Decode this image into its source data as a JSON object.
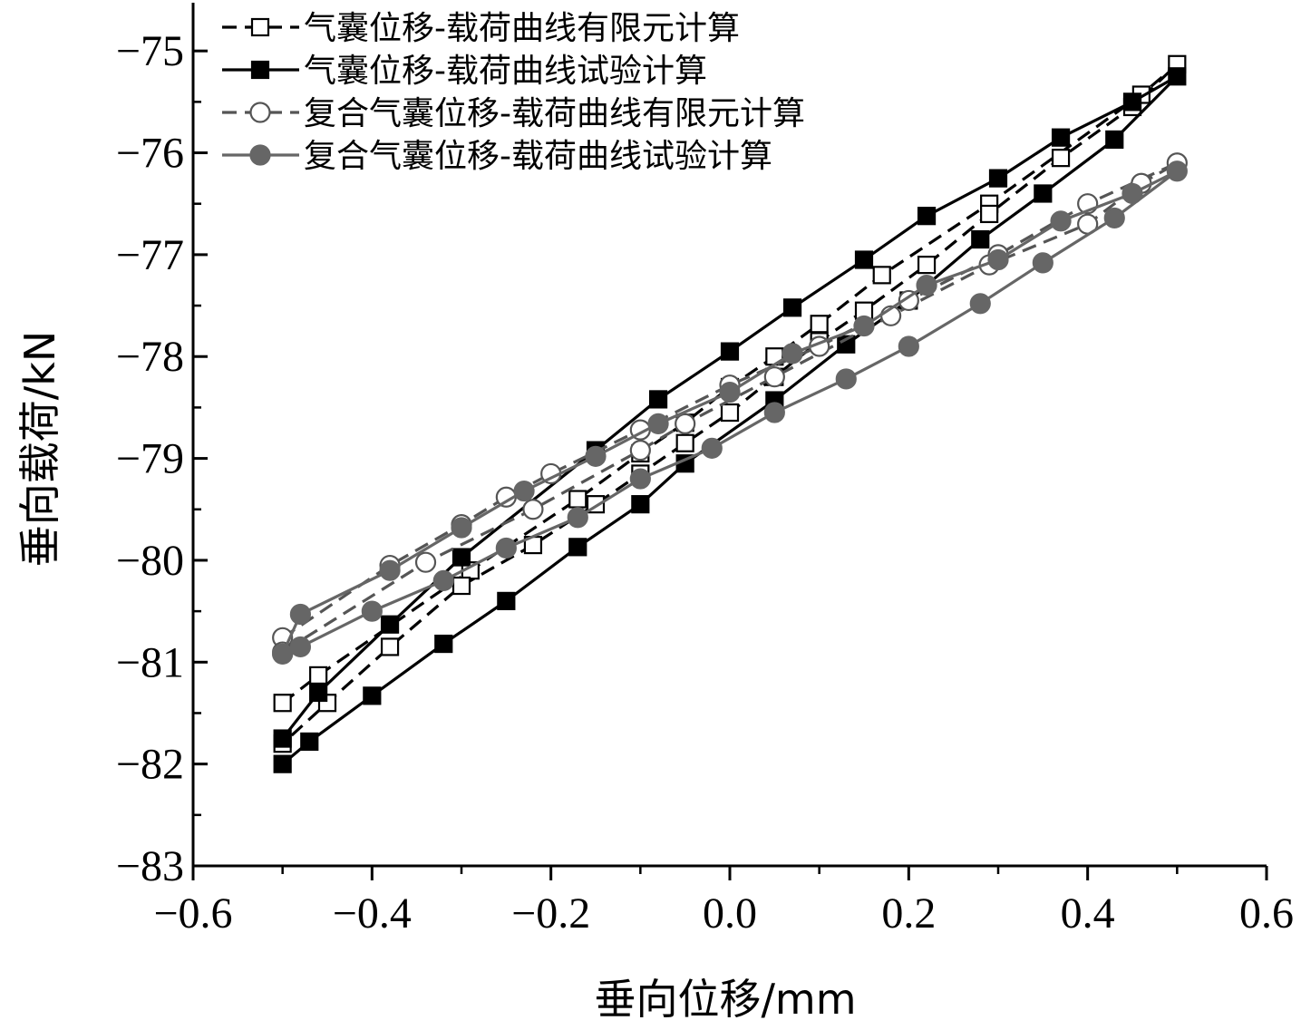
{
  "chart_data": {
    "type": "line",
    "title": "",
    "xlabel": "垂向位移/mm",
    "ylabel": "垂向载荷/kN",
    "xlim": [
      -0.6,
      0.6
    ],
    "ylim": [
      -83,
      -74.5
    ],
    "xticks": [
      -0.6,
      -0.4,
      -0.2,
      0.0,
      0.2,
      0.4,
      0.6
    ],
    "xtick_labels": [
      "−0.6",
      "−0.4",
      "−0.2",
      "0.0",
      "0.2",
      "0.4",
      "0.6"
    ],
    "yticks": [
      -83,
      -82,
      -81,
      -80,
      -79,
      -78,
      -77,
      -76,
      -75
    ],
    "ytick_labels": [
      "−83",
      "−82",
      "−81",
      "−80",
      "−79",
      "−78",
      "−77",
      "−76",
      "−75"
    ],
    "grid": false,
    "legend_position": "top-left",
    "series": [
      {
        "name": "气囊位移-载荷曲线有限元计算",
        "style": "dashed",
        "marker": "square-open",
        "color": "#000000",
        "x": [
          -0.5,
          -0.46,
          -0.29,
          -0.17,
          -0.1,
          -0.05,
          0.0,
          0.05,
          0.1,
          0.17,
          0.29,
          0.46,
          0.5,
          0.45,
          0.37,
          0.29,
          0.22,
          0.15,
          0.1,
          0.05,
          0.0,
          -0.05,
          -0.1,
          -0.15,
          -0.22,
          -0.3,
          -0.38,
          -0.45,
          -0.5
        ],
        "y": [
          -81.4,
          -81.13,
          -80.1,
          -79.4,
          -78.95,
          -78.65,
          -78.3,
          -78.0,
          -77.68,
          -77.2,
          -76.5,
          -75.43,
          -75.13,
          -75.55,
          -76.05,
          -76.6,
          -77.1,
          -77.55,
          -77.85,
          -78.2,
          -78.55,
          -78.85,
          -79.15,
          -79.45,
          -79.85,
          -80.25,
          -80.85,
          -81.4,
          -81.8
        ]
      },
      {
        "name": "气囊位移-载荷曲线试验计算",
        "style": "solid",
        "marker": "square-filled",
        "color": "#000000",
        "x": [
          -0.5,
          -0.47,
          -0.4,
          -0.32,
          -0.25,
          -0.17,
          -0.1,
          -0.05,
          0.05,
          0.13,
          0.2,
          0.28,
          0.35,
          0.43,
          0.5,
          0.45,
          0.37,
          0.3,
          0.22,
          0.15,
          0.07,
          0.0,
          -0.08,
          -0.15,
          -0.3,
          -0.38,
          -0.46,
          -0.5
        ],
        "y": [
          -82.0,
          -81.78,
          -81.33,
          -80.82,
          -80.4,
          -79.87,
          -79.45,
          -79.05,
          -78.43,
          -77.88,
          -77.45,
          -76.85,
          -76.4,
          -75.87,
          -75.25,
          -75.5,
          -75.85,
          -76.25,
          -76.62,
          -77.05,
          -77.52,
          -77.95,
          -78.42,
          -78.92,
          -79.97,
          -80.63,
          -81.3,
          -81.75
        ]
      },
      {
        "name": "复合气囊位移-载荷曲线有限元计算",
        "style": "dashed",
        "marker": "circle-open",
        "color": "#555555",
        "x": [
          -0.5,
          -0.38,
          -0.3,
          -0.25,
          -0.2,
          -0.1,
          0.0,
          0.1,
          0.2,
          0.3,
          0.4,
          0.5,
          0.46,
          0.4,
          0.29,
          0.18,
          0.05,
          -0.05,
          -0.1,
          -0.22,
          -0.34,
          -0.5
        ],
        "y": [
          -80.76,
          -80.05,
          -79.65,
          -79.38,
          -79.15,
          -78.72,
          -78.28,
          -77.9,
          -77.45,
          -77.0,
          -76.5,
          -76.1,
          -76.3,
          -76.7,
          -77.1,
          -77.6,
          -78.2,
          -78.66,
          -78.92,
          -79.5,
          -80.02,
          -80.9
        ]
      },
      {
        "name": "复合气囊位移-载荷曲线试验计算",
        "style": "solid",
        "marker": "circle-filled",
        "color": "#666666",
        "x": [
          -0.5,
          -0.48,
          -0.4,
          -0.32,
          -0.25,
          -0.17,
          -0.1,
          -0.02,
          0.05,
          0.13,
          0.2,
          0.28,
          0.35,
          0.43,
          0.5,
          0.45,
          0.37,
          0.3,
          0.22,
          0.15,
          0.07,
          0.0,
          -0.08,
          -0.15,
          -0.23,
          -0.3,
          -0.38,
          -0.48,
          -0.5
        ],
        "y": [
          -80.92,
          -80.85,
          -80.5,
          -80.2,
          -79.88,
          -79.58,
          -79.2,
          -78.9,
          -78.55,
          -78.22,
          -77.9,
          -77.48,
          -77.08,
          -76.64,
          -76.18,
          -76.4,
          -76.67,
          -77.05,
          -77.3,
          -77.7,
          -77.97,
          -78.35,
          -78.66,
          -78.98,
          -79.32,
          -79.68,
          -80.1,
          -80.53,
          -80.92
        ]
      }
    ]
  }
}
